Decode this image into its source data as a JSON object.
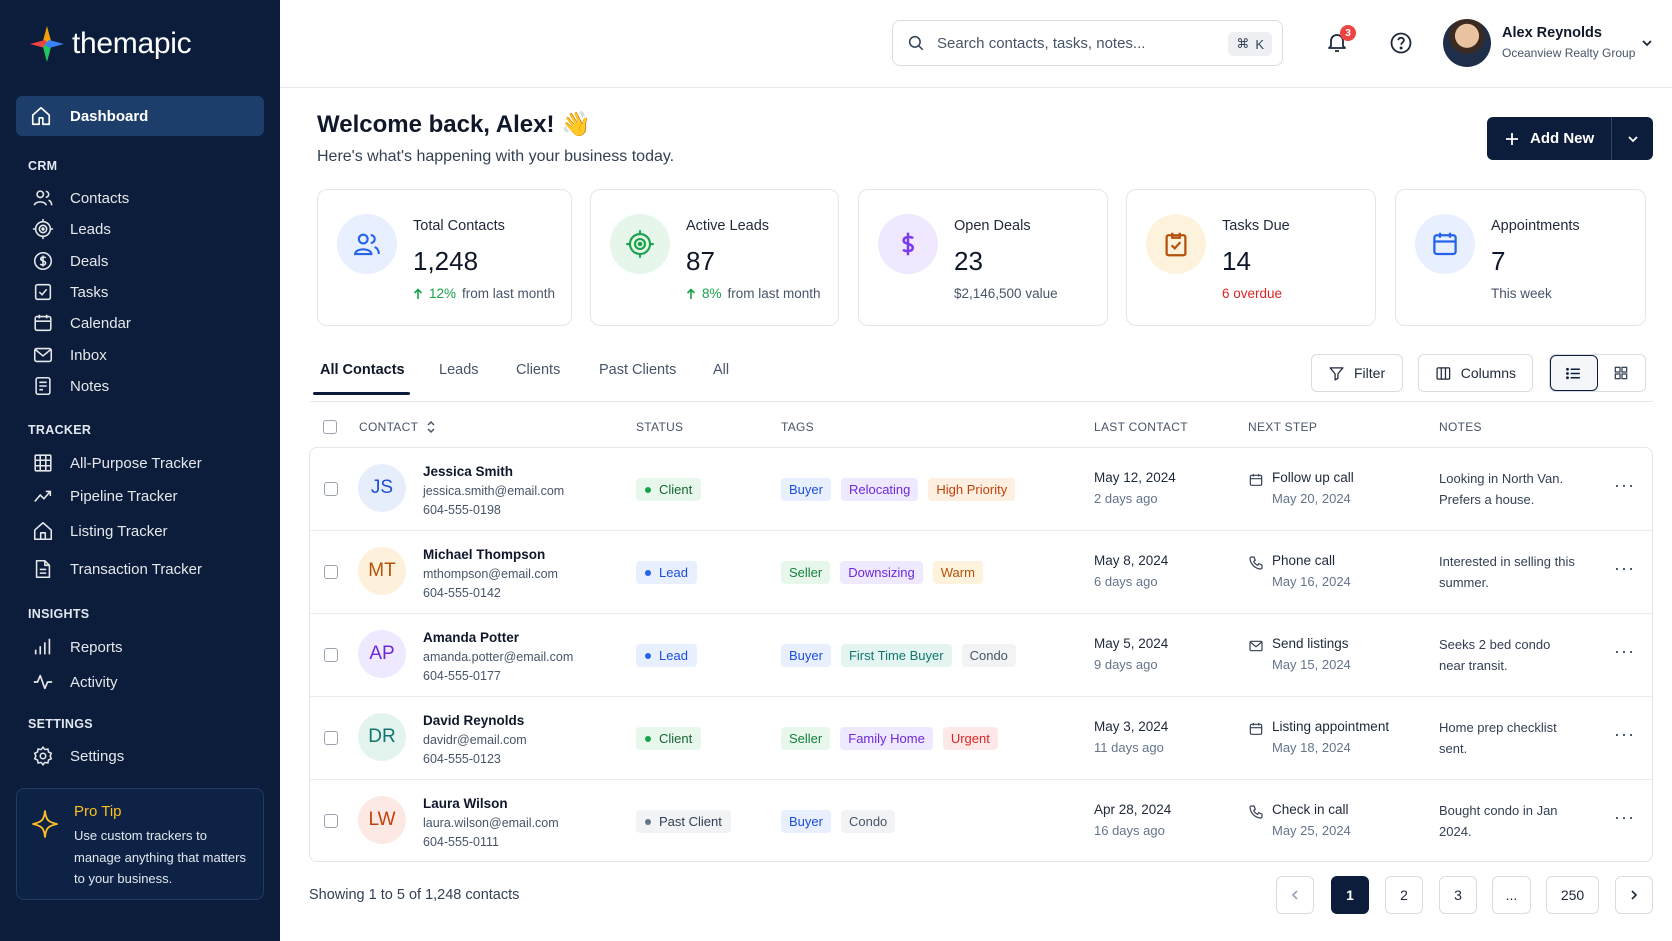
{
  "brand": {
    "name": "themapic"
  },
  "sidebar": {
    "dashboard": "Dashboard",
    "sections": {
      "crm": "CRM",
      "tracker": "TRACKER",
      "insights": "INSIGHTS",
      "settings": "SETTINGS"
    },
    "crm_items": [
      "Contacts",
      "Leads",
      "Deals",
      "Tasks",
      "Calendar",
      "Inbox",
      "Notes"
    ],
    "tracker_items": [
      "All-Purpose Tracker",
      "Pipeline Tracker",
      "Listing Tracker",
      "Transaction Tracker"
    ],
    "insights_items": [
      "Reports",
      "Activity"
    ],
    "settings_items": [
      "Settings"
    ],
    "tip": {
      "title": "Pro Tip",
      "body": "Use custom trackers to manage anything that matters to your business."
    }
  },
  "topbar": {
    "search_placeholder": "Search contacts, tasks, notes...",
    "shortcut_symbol": "⌘",
    "shortcut_key": "K",
    "notification_count": "3",
    "user_name": "Alex Reynolds",
    "user_org": "Oceanview Realty Group"
  },
  "welcome": {
    "title": "Welcome back, Alex! 👋",
    "subtitle": "Here's what's happening with your business today.",
    "add_button": "Add New"
  },
  "stats": [
    {
      "label": "Total Contacts",
      "value": "1,248",
      "sub_highlight": "12%",
      "sub_text": "from last month",
      "trend": "up",
      "icon": "users-icon",
      "color": "#2563eb"
    },
    {
      "label": "Active Leads",
      "value": "87",
      "sub_highlight": "8%",
      "sub_text": "from last month",
      "trend": "up",
      "icon": "target-icon",
      "color": "#16a34a"
    },
    {
      "label": "Open Deals",
      "value": "23",
      "sub_text": "$2,146,500 value",
      "icon": "dollar-icon",
      "color": "#7c3aed"
    },
    {
      "label": "Tasks Due",
      "value": "14",
      "sub_text": "6 overdue",
      "status": "negative",
      "icon": "task-check-icon",
      "color": "#b45309"
    },
    {
      "label": "Appointments",
      "value": "7",
      "sub_text": "This week",
      "icon": "calendar-icon",
      "color": "#2563eb"
    }
  ],
  "tabs": [
    "All Contacts",
    "Leads",
    "Clients",
    "Past Clients",
    "All"
  ],
  "toolbar": {
    "filter": "Filter",
    "columns": "Columns"
  },
  "table": {
    "headers": {
      "contact": "CONTACT",
      "status": "STATUS",
      "tags": "TAGS",
      "last_contact": "LAST CONTACT",
      "next_step": "NEXT STEP",
      "notes": "NOTES"
    },
    "rows": [
      {
        "initials": "JS",
        "name": "Jessica Smith",
        "email": "jessica.smith@email.com",
        "phone": "604-555-0198",
        "status": "Client",
        "tags": [
          "Buyer",
          "Relocating",
          "High Priority"
        ],
        "last_contact": "May 12, 2024",
        "last_ago": "2 days ago",
        "next_step": "Follow up call",
        "next_date": "May 20, 2024",
        "next_icon": "calendar-icon",
        "note": "Looking in North Van. Prefers a house."
      },
      {
        "initials": "MT",
        "name": "Michael Thompson",
        "email": "mthompson@email.com",
        "phone": "604-555-0142",
        "status": "Lead",
        "tags": [
          "Seller",
          "Downsizing",
          "Warm"
        ],
        "last_contact": "May 8, 2024",
        "last_ago": "6 days ago",
        "next_step": "Phone call",
        "next_date": "May 16, 2024",
        "next_icon": "phone-icon",
        "note": "Interested in selling this summer."
      },
      {
        "initials": "AP",
        "name": "Amanda Potter",
        "email": "amanda.potter@email.com",
        "phone": "604-555-0177",
        "status": "Lead",
        "tags": [
          "Buyer",
          "First Time Buyer",
          "Condo"
        ],
        "last_contact": "May 5, 2024",
        "last_ago": "9 days ago",
        "next_step": "Send listings",
        "next_date": "May 15, 2024",
        "next_icon": "mail-icon",
        "note": "Seeks 2 bed condo near transit."
      },
      {
        "initials": "DR",
        "name": "David Reynolds",
        "email": "davidr@email.com",
        "phone": "604-555-0123",
        "status": "Client",
        "tags": [
          "Seller",
          "Family Home",
          "Urgent"
        ],
        "last_contact": "May 3, 2024",
        "last_ago": "11 days ago",
        "next_step": "Listing appointment",
        "next_date": "May 18, 2024",
        "next_icon": "calendar-icon",
        "note": "Home prep checklist sent."
      },
      {
        "initials": "LW",
        "name": "Laura Wilson",
        "email": "laura.wilson@email.com",
        "phone": "604-555-0111",
        "status": "Past Client",
        "tags": [
          "Buyer",
          "Condo"
        ],
        "last_contact": "Apr 28, 2024",
        "last_ago": "16 days ago",
        "next_step": "Check in call",
        "next_date": "May 25, 2024",
        "next_icon": "phone-icon",
        "note": "Bought condo in Jan 2024."
      }
    ]
  },
  "pagination": {
    "showing": "Showing 1 to 5 of 1,248 contacts",
    "pages": [
      "1",
      "2",
      "3",
      "...",
      "250"
    ],
    "current": "1"
  }
}
